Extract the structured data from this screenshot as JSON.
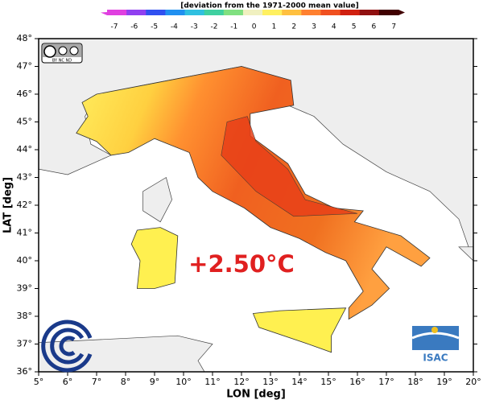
{
  "colorbar": {
    "title": "[deviation from the 1971-2000 mean value]",
    "ticks": [
      -7,
      -6,
      -5,
      -4,
      -3,
      -2,
      -1,
      0,
      1,
      2,
      3,
      4,
      5,
      6,
      7
    ],
    "colors": [
      "#e040e0",
      "#9040f0",
      "#3050f0",
      "#2090f0",
      "#30c0e0",
      "#40d0a0",
      "#80e080",
      "#f0f0c0",
      "#fff060",
      "#ffc040",
      "#ff8030",
      "#f05020",
      "#d02010",
      "#901010",
      "#400000"
    ]
  },
  "axes": {
    "x_label": "LON [deg]",
    "y_label": "LAT [deg]",
    "x_ticks": [
      "5°",
      "6°",
      "7°",
      "8°",
      "9°",
      "10°",
      "11°",
      "12°",
      "13°",
      "14°",
      "15°",
      "16°",
      "17°",
      "18°",
      "19°",
      "20°"
    ],
    "y_ticks": [
      "36°",
      "37°",
      "38°",
      "39°",
      "40°",
      "41°",
      "42°",
      "43°",
      "44°",
      "45°",
      "46°",
      "47°",
      "48°"
    ]
  },
  "anomaly_label": "+2.50°C",
  "license_badge": "BY NC ND",
  "institute_logo": "ISAC"
}
